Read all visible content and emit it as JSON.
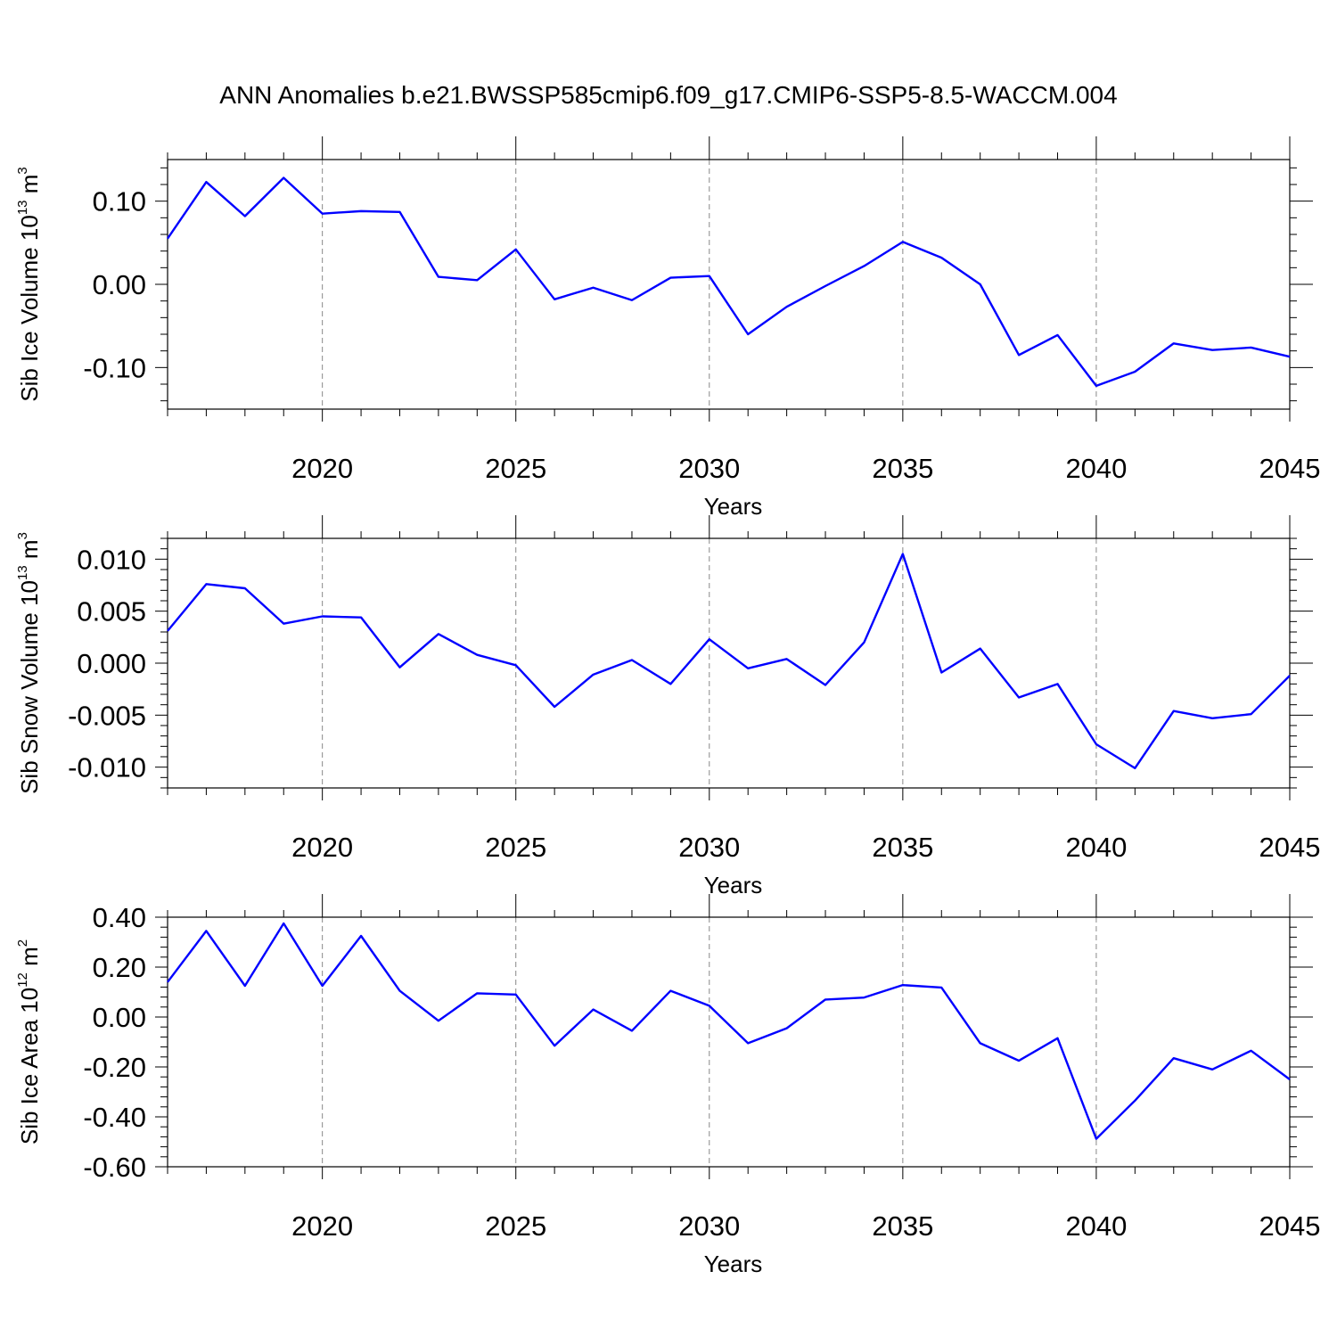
{
  "title": "ANN Anomalies b.e21.BWSSP585cmip6.f09_g17.CMIP6-SSP5-8.5-WACCM.004",
  "line_color": "#0000ff",
  "chart_data": [
    {
      "type": "line",
      "xlabel": "Years",
      "ylabel": {
        "prefix": "Sib Ice Volume 10",
        "exp": "13",
        "unit": " m",
        "unit_exp": "3"
      },
      "xlim": [
        2016,
        2045
      ],
      "ylim": [
        -0.15,
        0.15
      ],
      "xticks": [
        "2020",
        "2025",
        "2030",
        "2035",
        "2040",
        "2045"
      ],
      "yticks": [
        "-0.10",
        "0.00",
        "0.10"
      ],
      "x": [
        2016,
        2017,
        2018,
        2019,
        2020,
        2021,
        2022,
        2023,
        2024,
        2025,
        2026,
        2027,
        2028,
        2029,
        2030,
        2031,
        2032,
        2033,
        2034,
        2035,
        2036,
        2037,
        2038,
        2039,
        2040,
        2041,
        2042,
        2043,
        2044,
        2045
      ],
      "y": [
        0.055,
        0.123,
        0.082,
        0.128,
        0.085,
        0.088,
        0.087,
        0.009,
        0.005,
        0.042,
        -0.018,
        -0.004,
        -0.019,
        0.008,
        0.01,
        -0.06,
        -0.027,
        -0.002,
        0.022,
        0.051,
        0.032,
        0.0,
        -0.085,
        -0.061,
        -0.122,
        -0.105,
        -0.071,
        -0.079,
        -0.076,
        -0.087
      ]
    },
    {
      "type": "line",
      "xlabel": "Years",
      "ylabel": {
        "prefix": "Sib Snow Volume 10",
        "exp": "13",
        "unit": " m",
        "unit_exp": "3"
      },
      "xlim": [
        2016,
        2045
      ],
      "ylim": [
        -0.012,
        0.012
      ],
      "xticks": [
        "2020",
        "2025",
        "2030",
        "2035",
        "2040",
        "2045"
      ],
      "yticks": [
        "-0.010",
        "-0.005",
        "0.000",
        "0.005",
        "0.010"
      ],
      "x": [
        2016,
        2017,
        2018,
        2019,
        2020,
        2021,
        2022,
        2023,
        2024,
        2025,
        2026,
        2027,
        2028,
        2029,
        2030,
        2031,
        2032,
        2033,
        2034,
        2035,
        2036,
        2037,
        2038,
        2039,
        2040,
        2041,
        2042,
        2043,
        2044,
        2045
      ],
      "y": [
        0.0031,
        0.0076,
        0.0072,
        0.0038,
        0.0045,
        0.0044,
        -0.0004,
        0.0028,
        0.0008,
        -0.0002,
        -0.0042,
        -0.0011,
        0.0003,
        -0.002,
        0.0023,
        -0.0005,
        0.0004,
        -0.0021,
        0.002,
        0.0105,
        -0.0009,
        0.0014,
        -0.0033,
        -0.002,
        -0.0078,
        -0.0101,
        -0.0046,
        -0.0053,
        -0.0049,
        -0.0012
      ]
    },
    {
      "type": "line",
      "xlabel": "Years",
      "ylabel": {
        "prefix": "Sib Ice Area 10",
        "exp": "12",
        "unit": " m",
        "unit_exp": "2"
      },
      "xlim": [
        2016,
        2045
      ],
      "ylim": [
        -0.6,
        0.4
      ],
      "xticks": [
        "2020",
        "2025",
        "2030",
        "2035",
        "2040",
        "2045"
      ],
      "yticks": [
        "-0.60",
        "-0.40",
        "-0.20",
        "0.00",
        "0.20",
        "0.40"
      ],
      "x": [
        2016,
        2017,
        2018,
        2019,
        2020,
        2021,
        2022,
        2023,
        2024,
        2025,
        2026,
        2027,
        2028,
        2029,
        2030,
        2031,
        2032,
        2033,
        2034,
        2035,
        2036,
        2037,
        2038,
        2039,
        2040,
        2041,
        2042,
        2043,
        2044,
        2045
      ],
      "y": [
        0.14,
        0.345,
        0.125,
        0.375,
        0.125,
        0.325,
        0.105,
        -0.015,
        0.095,
        0.09,
        -0.115,
        0.03,
        -0.055,
        0.105,
        0.045,
        -0.105,
        -0.045,
        0.07,
        0.078,
        0.128,
        0.118,
        -0.105,
        -0.175,
        -0.085,
        -0.488,
        -0.335,
        -0.165,
        -0.21,
        -0.135,
        -0.25
      ]
    }
  ]
}
